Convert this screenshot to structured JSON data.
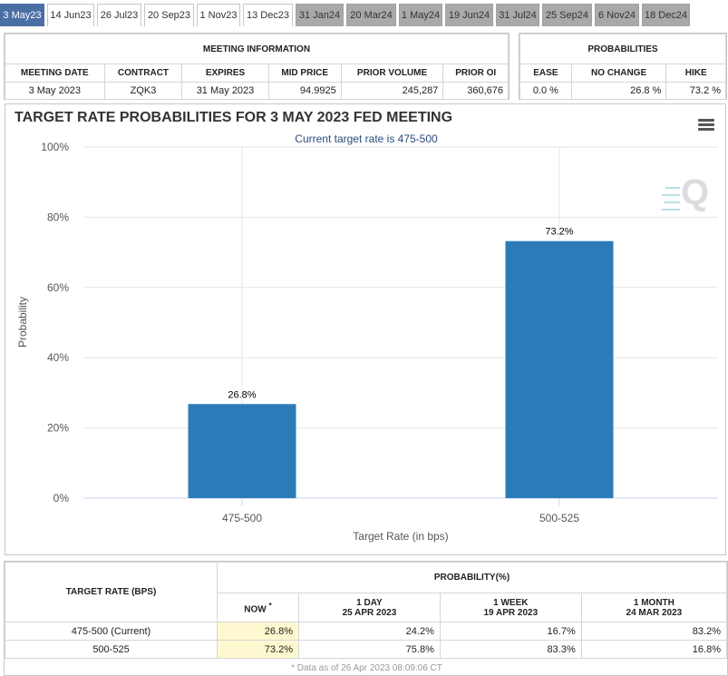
{
  "tabs": [
    {
      "label": "3 May23",
      "state": "active"
    },
    {
      "label": "14 Jun23",
      "state": "normal"
    },
    {
      "label": "26 Jul23",
      "state": "normal"
    },
    {
      "label": "20 Sep23",
      "state": "normal"
    },
    {
      "label": "1 Nov23",
      "state": "normal"
    },
    {
      "label": "13 Dec23",
      "state": "normal"
    },
    {
      "label": "31 Jan24",
      "state": "grey"
    },
    {
      "label": "20 Mar24",
      "state": "grey"
    },
    {
      "label": "1 May24",
      "state": "grey"
    },
    {
      "label": "19 Jun24",
      "state": "grey"
    },
    {
      "label": "31 Jul24",
      "state": "grey"
    },
    {
      "label": "25 Sep24",
      "state": "grey"
    },
    {
      "label": "6 Nov24",
      "state": "grey"
    },
    {
      "label": "18 Dec24",
      "state": "grey"
    }
  ],
  "meeting_info": {
    "title": "MEETING INFORMATION",
    "headers": [
      "MEETING DATE",
      "CONTRACT",
      "EXPIRES",
      "MID PRICE",
      "PRIOR VOLUME",
      "PRIOR OI"
    ],
    "values": [
      "3 May 2023",
      "ZQK3",
      "31 May 2023",
      "94.9925",
      "245,287",
      "360,676"
    ]
  },
  "probabilities": {
    "title": "PROBABILITIES",
    "headers": [
      "EASE",
      "NO CHANGE",
      "HIKE"
    ],
    "values": [
      "0.0 %",
      "26.8 %",
      "73.2 %"
    ]
  },
  "chart": {
    "watermark_icon": "cme-q-logo-icon",
    "menu_icon": "hamburger-menu-icon"
  },
  "chart_data": {
    "type": "bar",
    "title": "TARGET RATE PROBABILITIES FOR 3 MAY 2023 FED MEETING",
    "subtitle": "Current target rate is 475-500",
    "xlabel": "Target Rate (in bps)",
    "ylabel": "Probability",
    "categories": [
      "475-500",
      "500-525"
    ],
    "values": [
      26.8,
      73.2
    ],
    "data_labels": [
      "26.8%",
      "73.2%"
    ],
    "ylim": [
      0,
      100
    ],
    "yticks": [
      "0%",
      "20%",
      "40%",
      "60%",
      "80%",
      "100%"
    ],
    "grid": true,
    "bar_color": "#2b7bb9"
  },
  "bottom_table": {
    "rate_header": "TARGET RATE (BPS)",
    "prob_header": "PROBABILITY(%)",
    "columns": [
      {
        "line1": "NOW",
        "line2": "",
        "marker": "*"
      },
      {
        "line1": "1 DAY",
        "line2": "25 APR 2023"
      },
      {
        "line1": "1 WEEK",
        "line2": "19 APR 2023"
      },
      {
        "line1": "1 MONTH",
        "line2": "24 MAR 2023"
      }
    ],
    "rows": [
      {
        "rate": "475-500 (Current)",
        "values": [
          "26.8%",
          "24.2%",
          "16.7%",
          "83.2%"
        ]
      },
      {
        "rate": "500-525",
        "values": [
          "73.2%",
          "75.8%",
          "83.3%",
          "16.8%"
        ]
      }
    ],
    "footnote": "* Data as of 26 Apr 2023 08:09:06 CT"
  },
  "colors": {
    "tab_active": "#4a6fa5",
    "tab_grey": "#a9a9a9",
    "now_highlight": "#fdf8cf",
    "subtitle": "#2a4a7a"
  }
}
